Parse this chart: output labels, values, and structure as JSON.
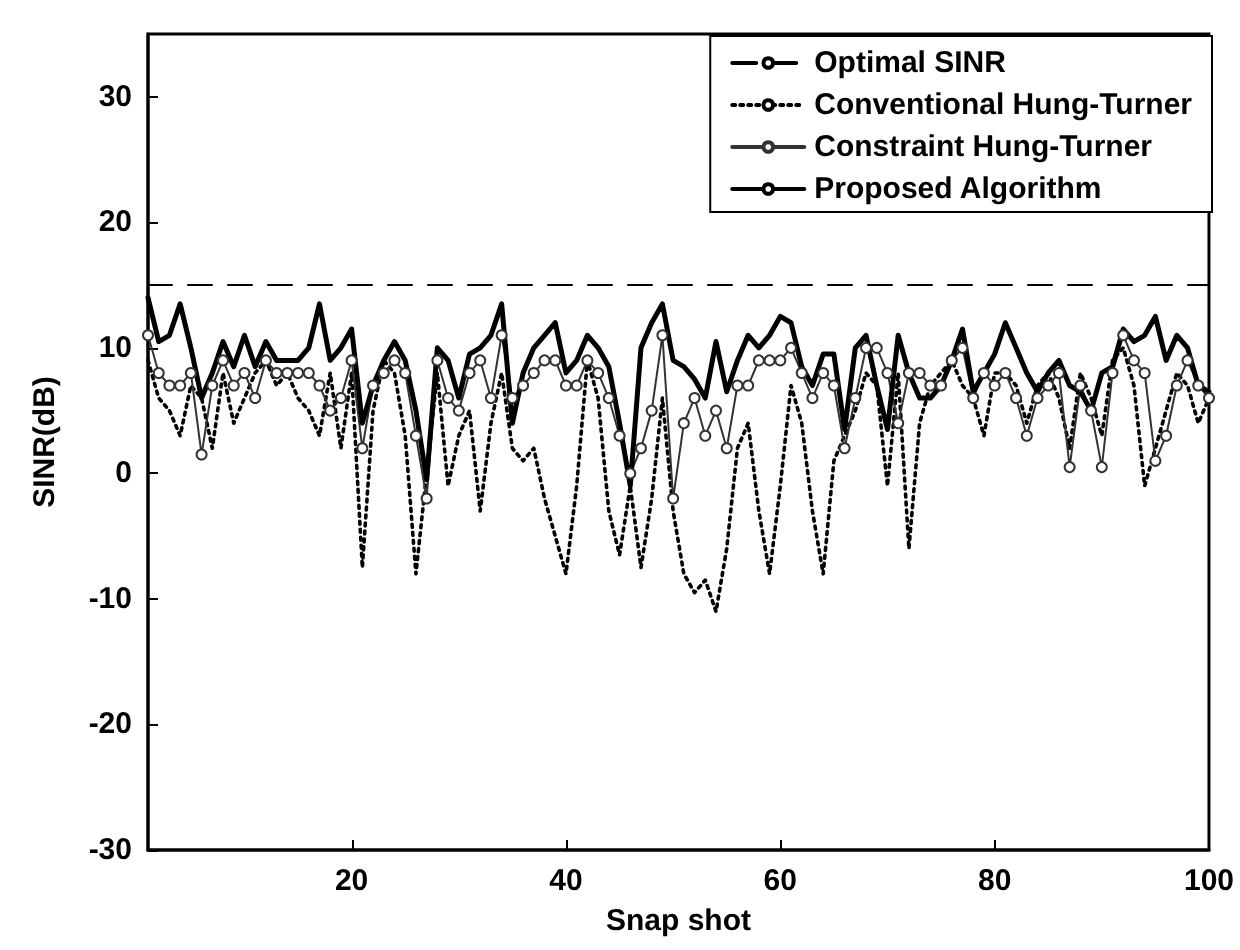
{
  "chart_data": {
    "type": "line",
    "xlabel": "Snap shot",
    "ylabel": "SINR(dB)",
    "x": [
      1,
      2,
      3,
      4,
      5,
      6,
      7,
      8,
      9,
      10,
      11,
      12,
      13,
      14,
      15,
      16,
      17,
      18,
      19,
      20,
      21,
      22,
      23,
      24,
      25,
      26,
      27,
      28,
      29,
      30,
      31,
      32,
      33,
      34,
      35,
      36,
      37,
      38,
      39,
      40,
      41,
      42,
      43,
      44,
      45,
      46,
      47,
      48,
      49,
      50,
      51,
      52,
      53,
      54,
      55,
      56,
      57,
      58,
      59,
      60,
      61,
      62,
      63,
      64,
      65,
      66,
      67,
      68,
      69,
      70,
      71,
      72,
      73,
      74,
      75,
      76,
      77,
      78,
      79,
      80,
      81,
      82,
      83,
      84,
      85,
      86,
      87,
      88,
      89,
      90,
      91,
      92,
      93,
      94,
      95,
      96,
      97,
      98,
      99,
      100
    ],
    "xlim": [
      1,
      100
    ],
    "xticks": [
      20,
      40,
      60,
      80,
      100
    ],
    "ylim": [
      -30,
      35
    ],
    "yticks": [
      -30,
      -20,
      -10,
      0,
      10,
      20,
      30
    ],
    "grid": false,
    "legend": "top right",
    "series": [
      {
        "name": "Optimal SINR",
        "color": "#000000",
        "line_style": "dashed",
        "marker": "none",
        "x": [
          1,
          100
        ],
        "values": [
          15,
          15
        ]
      },
      {
        "name": "Conventional Hung-Turner",
        "color": "#000000",
        "line_style": "dotted",
        "marker": "none",
        "values": [
          9,
          6,
          5,
          3,
          7,
          6,
          2,
          8,
          4,
          6,
          8,
          9,
          7,
          8,
          6,
          5,
          3,
          8,
          2,
          8,
          -7.5,
          5,
          9,
          8,
          3,
          -8,
          0,
          8,
          -1,
          3,
          5,
          -3,
          4,
          8,
          2,
          1,
          2,
          -2,
          -5,
          -8,
          -1,
          9,
          6,
          -3,
          -6.5,
          -1,
          -7.5,
          -2,
          6,
          -3,
          -8,
          -9.5,
          -8.5,
          -11,
          -6,
          2,
          4,
          -3,
          -8,
          -1,
          7,
          4,
          -3,
          -8,
          1,
          3,
          5,
          8,
          7,
          -1,
          8,
          -6,
          4,
          7,
          8,
          9,
          7,
          6,
          3,
          8,
          8,
          7,
          4,
          7,
          8,
          6,
          2,
          8,
          6,
          3,
          9,
          10,
          7,
          -1,
          2,
          5,
          8,
          7,
          4,
          6
        ]
      },
      {
        "name": "Constraint Hung-Turner",
        "color": "#333333",
        "line_style": "solid",
        "marker": "circle",
        "values": [
          11,
          8,
          7,
          7,
          8,
          1.5,
          7,
          9,
          7,
          8,
          6,
          9,
          8,
          8,
          8,
          8,
          7,
          5,
          6,
          9,
          2,
          7,
          8,
          9,
          8,
          3,
          -2,
          9,
          6,
          5,
          8,
          9,
          6,
          11,
          6,
          7,
          8,
          9,
          9,
          7,
          7,
          9,
          8,
          6,
          3,
          0,
          2,
          5,
          11,
          -2,
          4,
          6,
          3,
          5,
          2,
          7,
          7,
          9,
          9,
          9,
          10,
          8,
          6,
          8,
          7,
          2,
          6,
          10,
          10,
          8,
          4,
          8,
          8,
          7,
          7,
          9,
          10,
          6,
          8,
          7,
          8,
          6,
          3,
          6,
          7,
          8,
          0.5,
          7,
          5,
          0.5,
          8,
          11,
          9,
          8,
          1,
          3,
          7,
          9,
          7,
          6
        ]
      },
      {
        "name": "Proposed Algorithm",
        "color": "#000000",
        "line_style": "solid",
        "marker": "none",
        "values": [
          14,
          10.5,
          11,
          13.5,
          10,
          6,
          8,
          10.5,
          8.5,
          11,
          8.5,
          10.5,
          9,
          9,
          9,
          10,
          13.5,
          9,
          10,
          11.5,
          4,
          7,
          9,
          10.5,
          9,
          5,
          -0.5,
          10,
          9,
          6,
          9.5,
          10,
          11,
          13.5,
          4,
          8,
          10,
          11,
          12,
          8,
          9,
          11,
          10,
          8.5,
          4,
          -1,
          10,
          12,
          13.5,
          9,
          8.5,
          7.5,
          6,
          10.5,
          6.5,
          9,
          11,
          10,
          11,
          12.5,
          12,
          8.5,
          7,
          9.5,
          9.5,
          3.5,
          10,
          11,
          7,
          3.5,
          11,
          8,
          6,
          6,
          7,
          9,
          11.5,
          6.5,
          8,
          9.5,
          12,
          10,
          8,
          6.5,
          8,
          9,
          7,
          6.5,
          5,
          8,
          8.5,
          11.5,
          10.5,
          11,
          12.5,
          9,
          11,
          10,
          7,
          6.5
        ]
      }
    ]
  }
}
